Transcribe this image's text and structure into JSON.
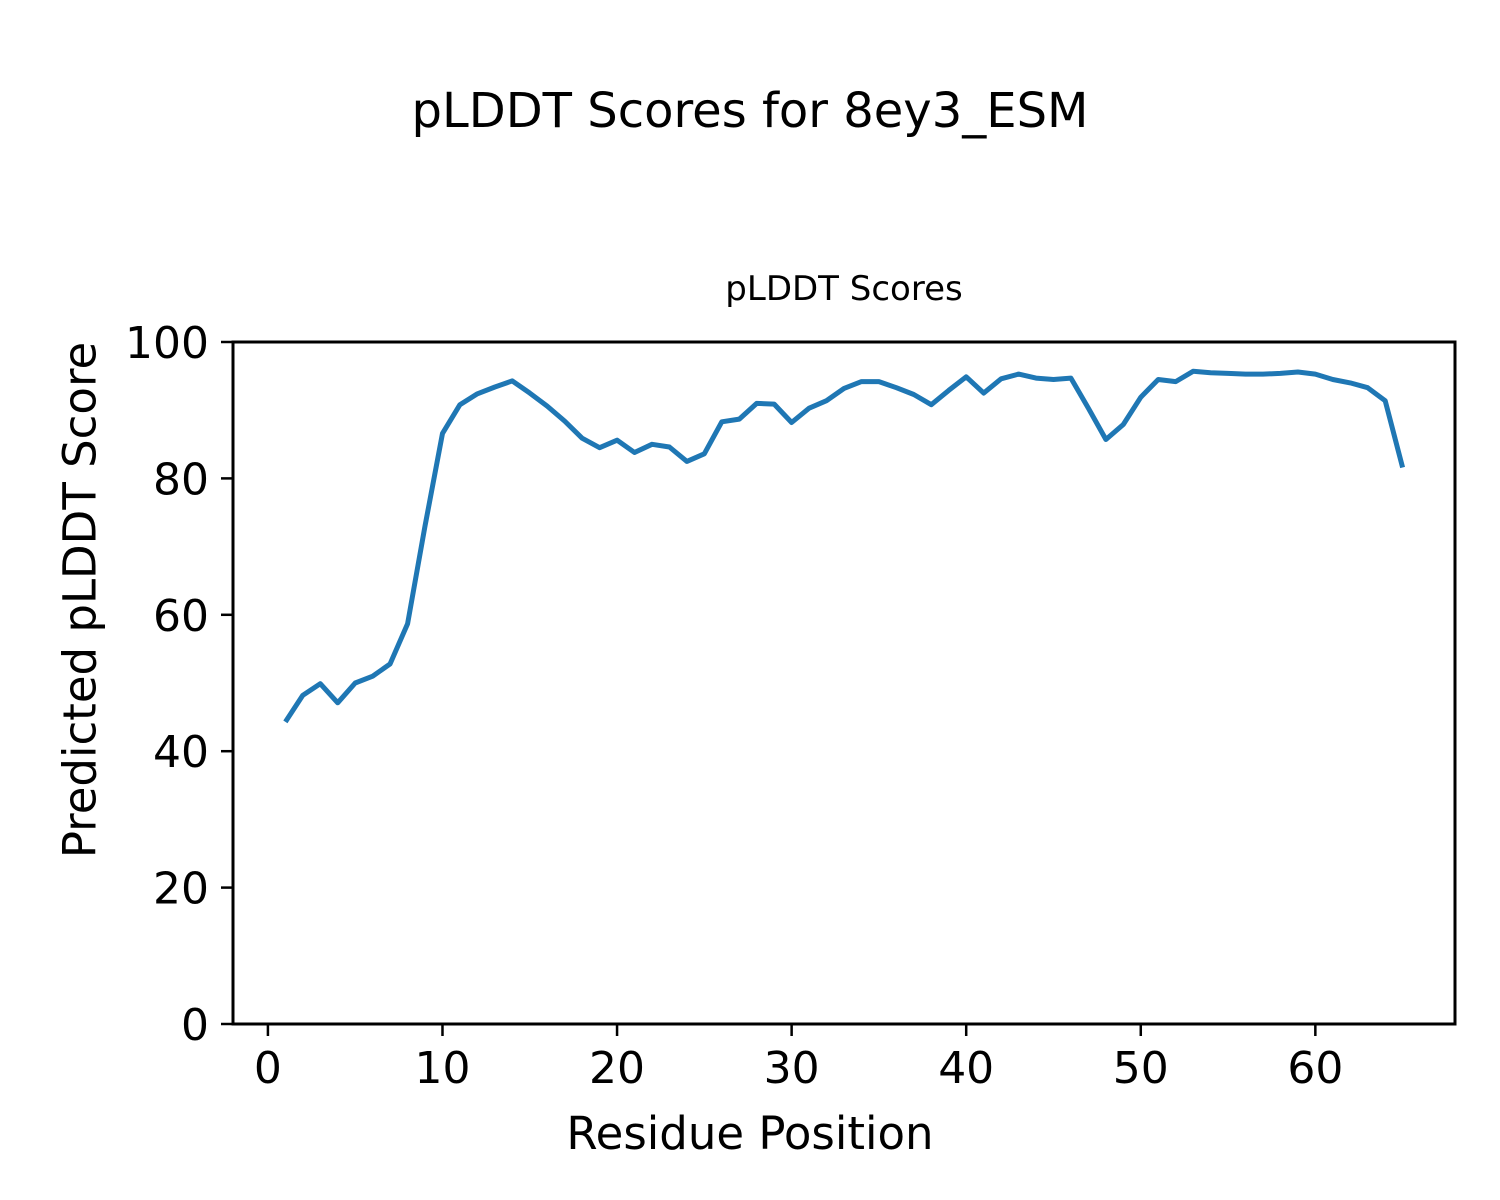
{
  "figure": {
    "suptitle": "pLDDT Scores for 8ey3_ESM",
    "axes_title": "pLDDT Scores",
    "xlabel": "Residue Position",
    "ylabel": "Predicted pLDDT Score"
  },
  "chart_data": {
    "type": "line",
    "title": "pLDDT Scores",
    "suptitle": "pLDDT Scores for 8ey3_ESM",
    "xlabel": "Residue Position",
    "ylabel": "Predicted pLDDT Score",
    "grid": false,
    "legend": null,
    "line_color": "#1f77b4",
    "line_width": 5,
    "xlim": [
      -2.0,
      68.0
    ],
    "ylim": [
      0,
      100
    ],
    "xticks": [
      0,
      10,
      20,
      30,
      40,
      50,
      60
    ],
    "yticks": [
      0,
      20,
      40,
      60,
      80,
      100
    ],
    "x": [
      1,
      2,
      3,
      4,
      5,
      6,
      7,
      8,
      9,
      10,
      11,
      12,
      13,
      14,
      15,
      16,
      17,
      18,
      19,
      20,
      21,
      22,
      23,
      24,
      25,
      26,
      27,
      28,
      29,
      30,
      31,
      32,
      33,
      34,
      35,
      36,
      37,
      38,
      39,
      40,
      41,
      42,
      43,
      44,
      45,
      46,
      47,
      48,
      49,
      50,
      51,
      52,
      53,
      54,
      55,
      56,
      57,
      58,
      59,
      60,
      61,
      62,
      63,
      64,
      65
    ],
    "y": [
      44.3,
      48.2,
      49.9,
      47.1,
      50.0,
      51.0,
      52.8,
      58.7,
      73.0,
      86.6,
      90.8,
      92.4,
      93.4,
      94.3,
      92.5,
      90.6,
      88.4,
      85.9,
      84.5,
      85.6,
      83.8,
      85.0,
      84.6,
      82.5,
      83.6,
      88.3,
      88.7,
      91.0,
      90.9,
      88.2,
      90.3,
      91.4,
      93.2,
      94.2,
      94.2,
      93.3,
      92.3,
      90.8,
      92.9,
      94.9,
      92.5,
      94.6,
      95.3,
      94.7,
      94.5,
      94.7,
      90.3,
      85.7,
      87.9,
      91.9,
      94.5,
      94.2,
      95.7,
      95.5,
      95.4,
      95.3,
      95.3,
      95.4,
      95.6,
      95.3,
      94.5,
      94.0,
      93.3,
      91.4,
      81.6
    ]
  }
}
